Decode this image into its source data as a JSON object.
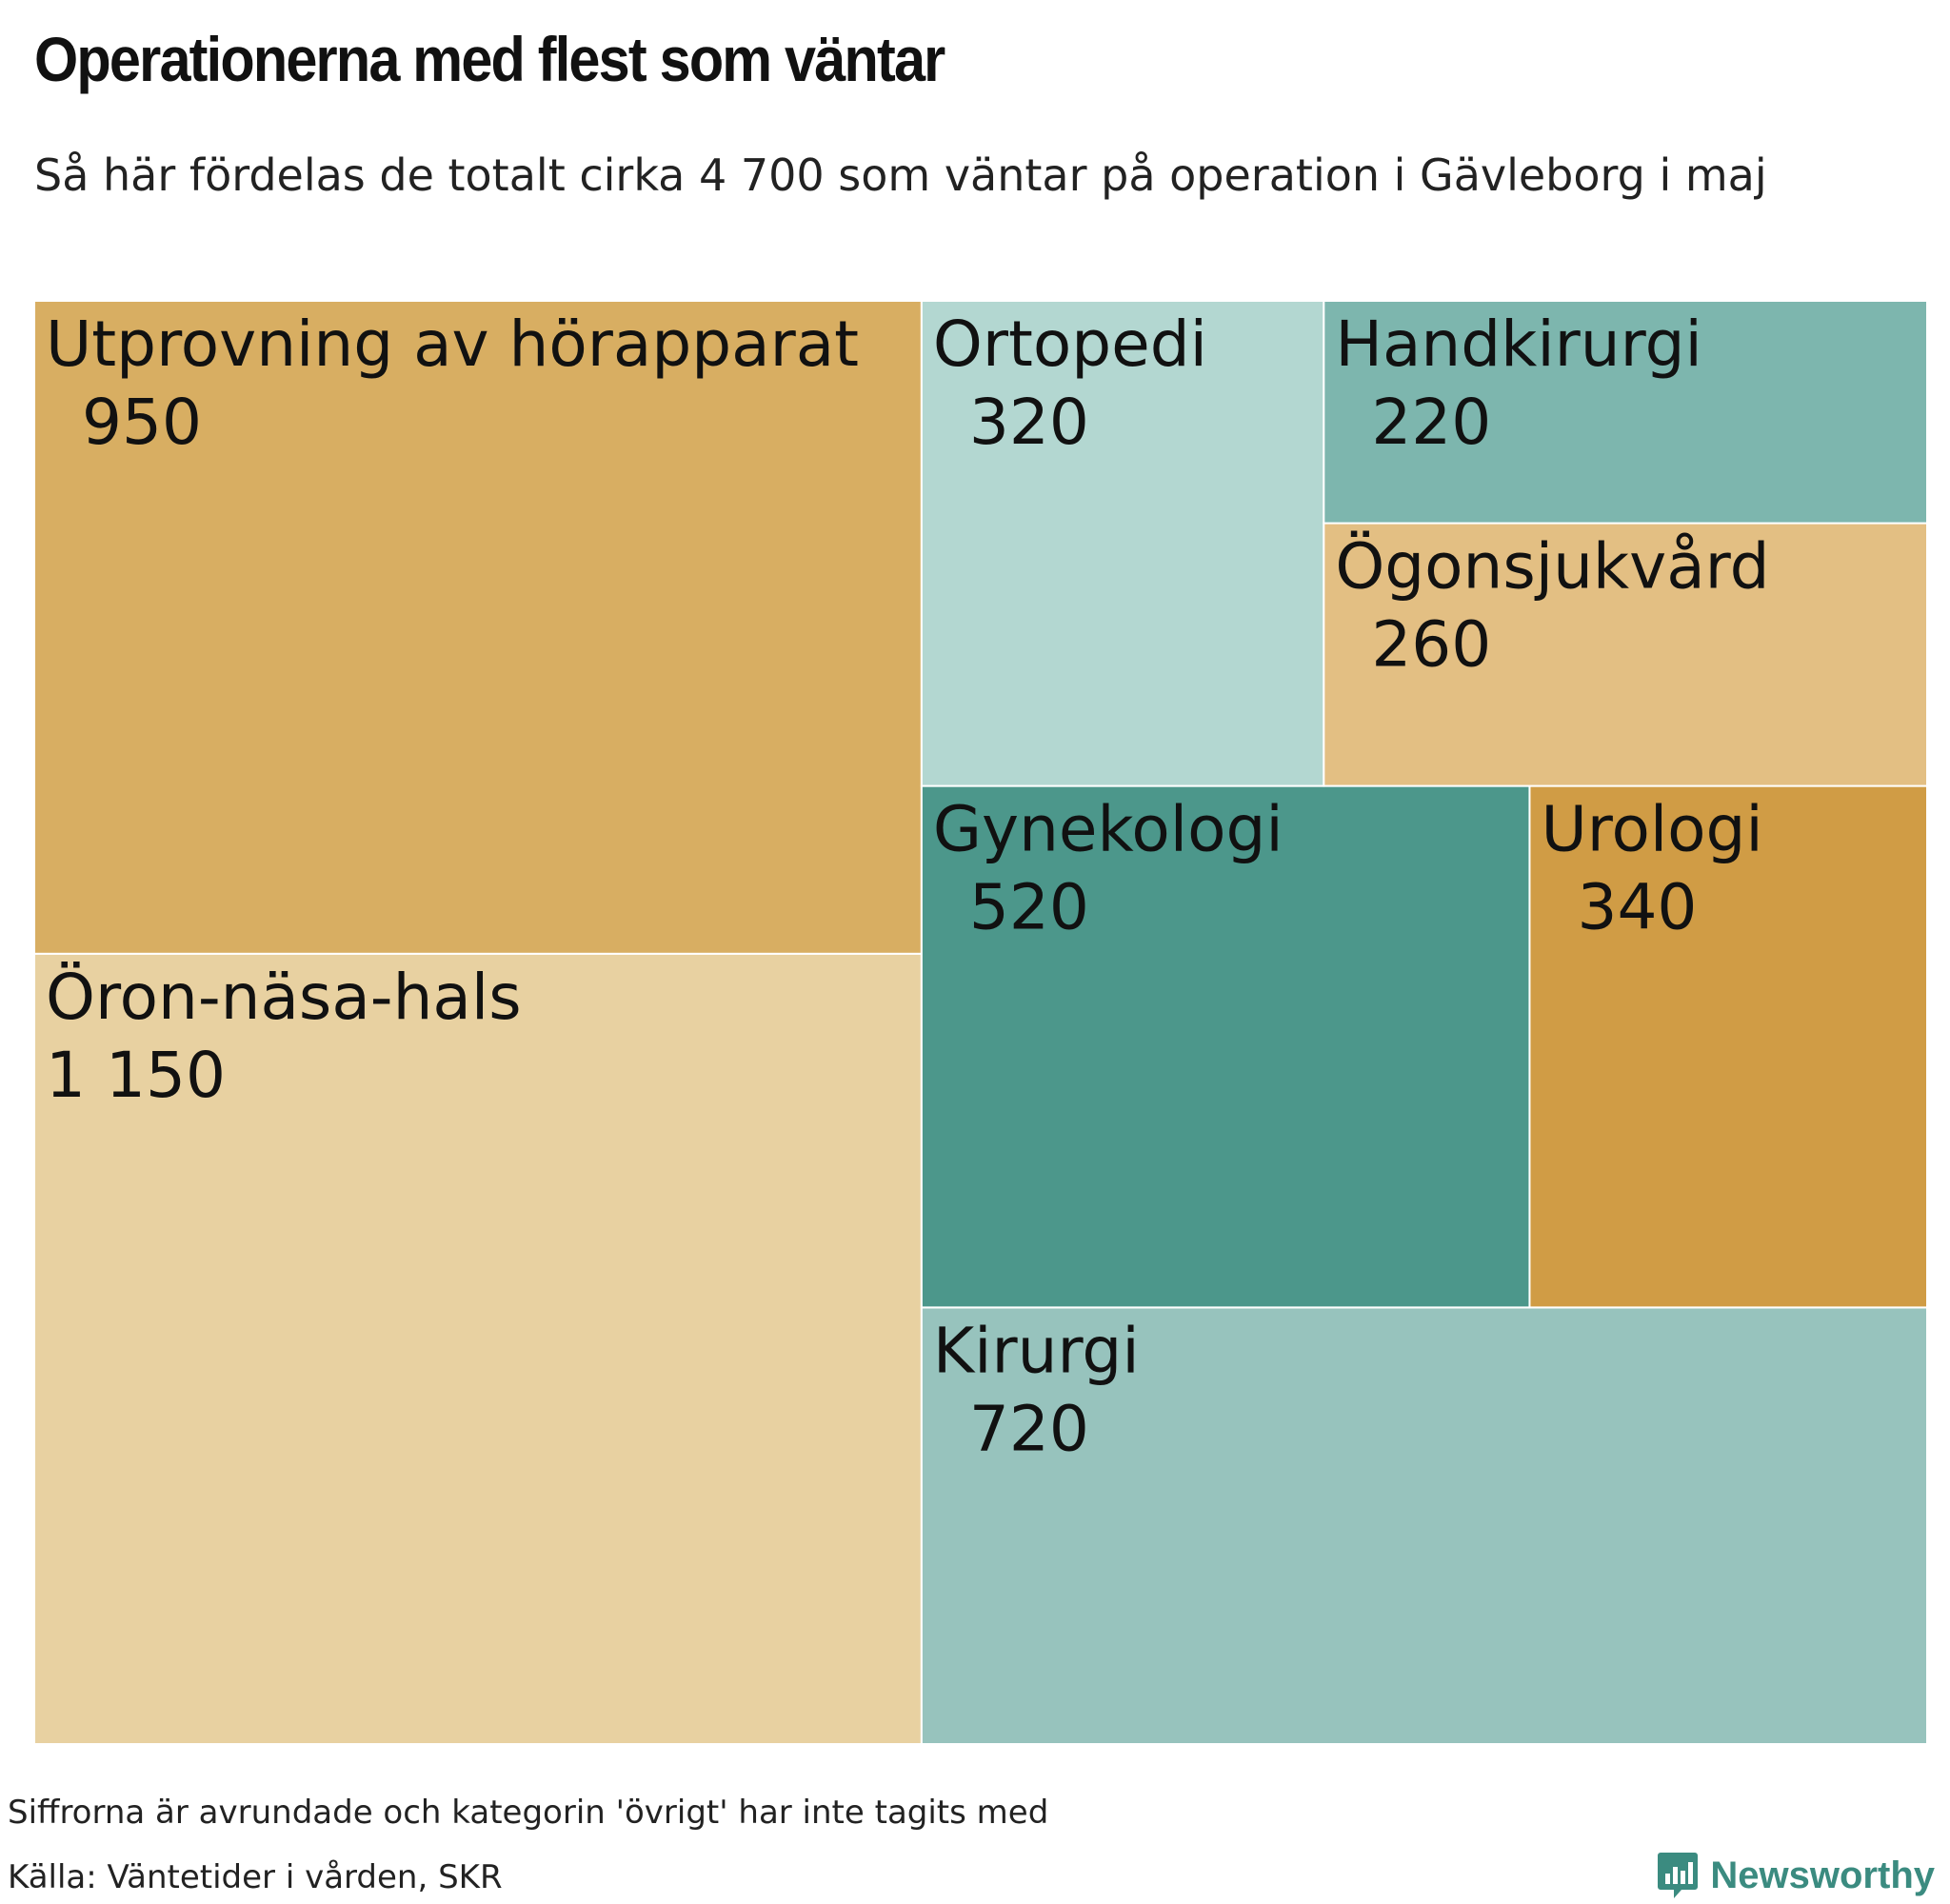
{
  "title": "Operationerna med flest som väntar",
  "subtitle": "Så här fördelas de totalt cirka 4 700 som väntar på operation i Gävleborg i maj",
  "footer": {
    "note": "Siffrorna är avrundade och kategorin 'övrigt' har inte tagits med",
    "source": "Källa: Väntetider i vården, SKR"
  },
  "brand": {
    "name": "Newsworthy",
    "icon": "newsworthy-chart-icon",
    "color": "#3b8b80"
  },
  "chart_data": {
    "type": "treemap",
    "items": [
      {
        "label": "Öron-näsa-hals",
        "value_label": "1 150",
        "value": 1150,
        "color": "#e8d1a1"
      },
      {
        "label": "Utprovning av hörapparat",
        "value_label": "950",
        "value": 950,
        "color": "#d8ae62"
      },
      {
        "label": "Kirurgi",
        "value_label": "720",
        "value": 720,
        "color": "#97c3bd"
      },
      {
        "label": "Gynekologi",
        "value_label": "520",
        "value": 520,
        "color": "#4c978b"
      },
      {
        "label": "Urologi",
        "value_label": "340",
        "value": 340,
        "color": "#d09c45"
      },
      {
        "label": "Ortopedi",
        "value_label": "320",
        "value": 320,
        "color": "#b3d7d1"
      },
      {
        "label": "Ögonsjukvård",
        "value_label": "260",
        "value": 260,
        "color": "#e3bf83"
      },
      {
        "label": "Handkirurgi",
        "value_label": "220",
        "value": 220,
        "color": "#7db6ae"
      }
    ]
  }
}
